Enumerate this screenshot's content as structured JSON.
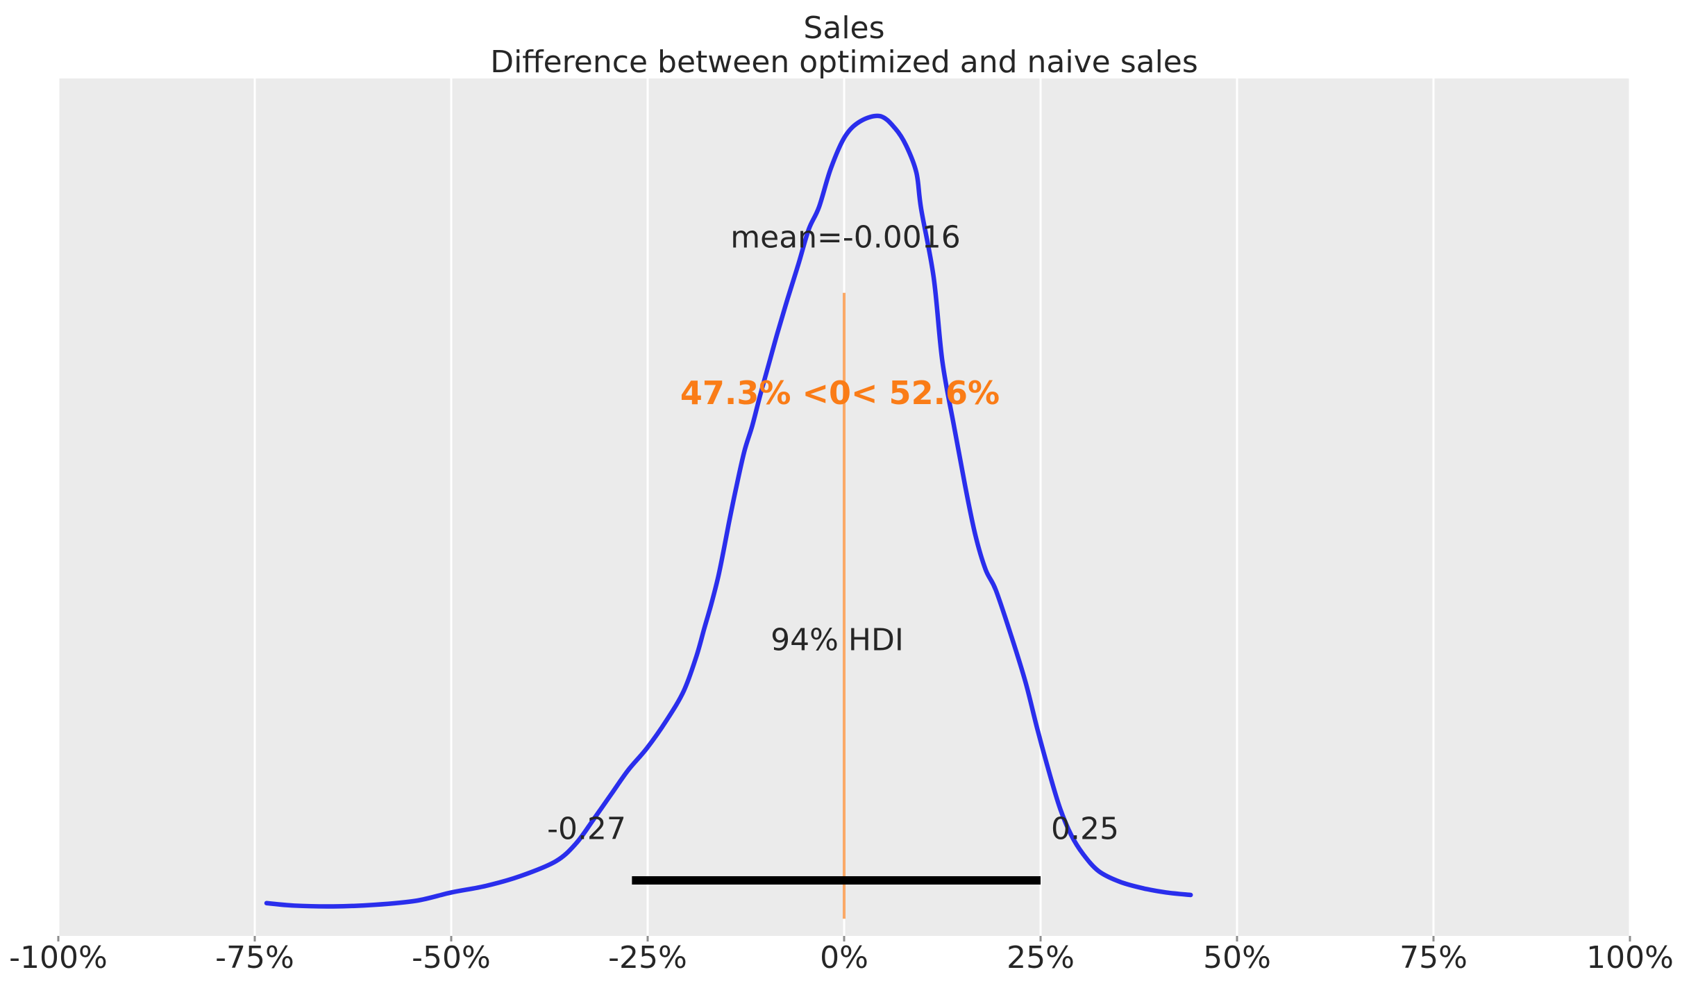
{
  "title": {
    "line1": "Sales",
    "line2": "Difference between optimized and naive sales"
  },
  "annotations": {
    "mean_label": "mean=-0.0016",
    "ref_label": "47.3% <0< 52.6%",
    "hdi_label": "94% HDI",
    "hdi_lower_label": "-0.27",
    "hdi_upper_label": "0.25"
  },
  "colors": {
    "page_background": "#ffffff",
    "plot_background": "#ebebeb",
    "gridline": "#ffffff",
    "curve": "#2a2eec",
    "ref_line": "rgba(250,124,23,0.65)",
    "ref_text": "#fa7c17",
    "hdi_bar": "#000000",
    "text": "#262626",
    "tick_mark": "#8e8e8e"
  },
  "chart_data": {
    "type": "area",
    "subtype": "kde-posterior",
    "title": "Sales",
    "subtitle": "Difference between optimized and naive sales",
    "xlabel": "",
    "ylabel": "",
    "grid": "vertical-only",
    "legend": "none",
    "xlim": [
      -1.0,
      1.0
    ],
    "ylim": [
      0,
      1.046
    ],
    "x_ticks": [
      {
        "value": -1.0,
        "label": "-100%"
      },
      {
        "value": -0.75,
        "label": "-75%"
      },
      {
        "value": -0.5,
        "label": "-50%"
      },
      {
        "value": -0.25,
        "label": "-25%"
      },
      {
        "value": 0.0,
        "label": "0%"
      },
      {
        "value": 0.25,
        "label": "25%"
      },
      {
        "value": 0.5,
        "label": "50%"
      },
      {
        "value": 0.75,
        "label": "75%"
      },
      {
        "value": 1.0,
        "label": "100%"
      }
    ],
    "mean": -0.0016,
    "hdi": {
      "prob": 0.94,
      "lower": -0.27,
      "upper": 0.25
    },
    "ref_val": {
      "value": 0,
      "pct_below": 47.3,
      "pct_above": 52.6
    },
    "curve": {
      "x_units": "fraction (1.0 = 100%)",
      "y_units": "density normalized to peak = 1.0",
      "points": [
        [
          -0.735,
          0.04
        ],
        [
          -0.7,
          0.037
        ],
        [
          -0.65,
          0.036
        ],
        [
          -0.597,
          0.038
        ],
        [
          -0.544,
          0.043
        ],
        [
          -0.5,
          0.053
        ],
        [
          -0.456,
          0.061
        ],
        [
          -0.412,
          0.073
        ],
        [
          -0.367,
          0.091
        ],
        [
          -0.341,
          0.113
        ],
        [
          -0.319,
          0.142
        ],
        [
          -0.297,
          0.172
        ],
        [
          -0.275,
          0.202
        ],
        [
          -0.251,
          0.229
        ],
        [
          -0.226,
          0.263
        ],
        [
          -0.204,
          0.299
        ],
        [
          -0.188,
          0.341
        ],
        [
          -0.178,
          0.375
        ],
        [
          -0.169,
          0.405
        ],
        [
          -0.16,
          0.439
        ],
        [
          -0.153,
          0.472
        ],
        [
          -0.147,
          0.502
        ],
        [
          -0.138,
          0.544
        ],
        [
          -0.127,
          0.591
        ],
        [
          -0.117,
          0.622
        ],
        [
          -0.107,
          0.659
        ],
        [
          -0.096,
          0.697
        ],
        [
          -0.085,
          0.735
        ],
        [
          -0.072,
          0.777
        ],
        [
          -0.058,
          0.82
        ],
        [
          -0.045,
          0.862
        ],
        [
          -0.032,
          0.889
        ],
        [
          -0.017,
          0.936
        ],
        [
          0.001,
          0.975
        ],
        [
          0.021,
          0.994
        ],
        [
          0.046,
          1.0
        ],
        [
          0.065,
          0.985
        ],
        [
          0.079,
          0.964
        ],
        [
          0.092,
          0.931
        ],
        [
          0.098,
          0.887
        ],
        [
          0.114,
          0.803
        ],
        [
          0.125,
          0.701
        ],
        [
          0.14,
          0.621
        ],
        [
          0.154,
          0.549
        ],
        [
          0.167,
          0.489
        ],
        [
          0.18,
          0.447
        ],
        [
          0.193,
          0.422
        ],
        [
          0.213,
          0.365
        ],
        [
          0.231,
          0.309
        ],
        [
          0.246,
          0.252
        ],
        [
          0.262,
          0.196
        ],
        [
          0.275,
          0.155
        ],
        [
          0.289,
          0.123
        ],
        [
          0.304,
          0.1
        ],
        [
          0.324,
          0.079
        ],
        [
          0.351,
          0.066
        ],
        [
          0.381,
          0.058
        ],
        [
          0.41,
          0.053
        ],
        [
          0.441,
          0.05
        ]
      ]
    }
  }
}
